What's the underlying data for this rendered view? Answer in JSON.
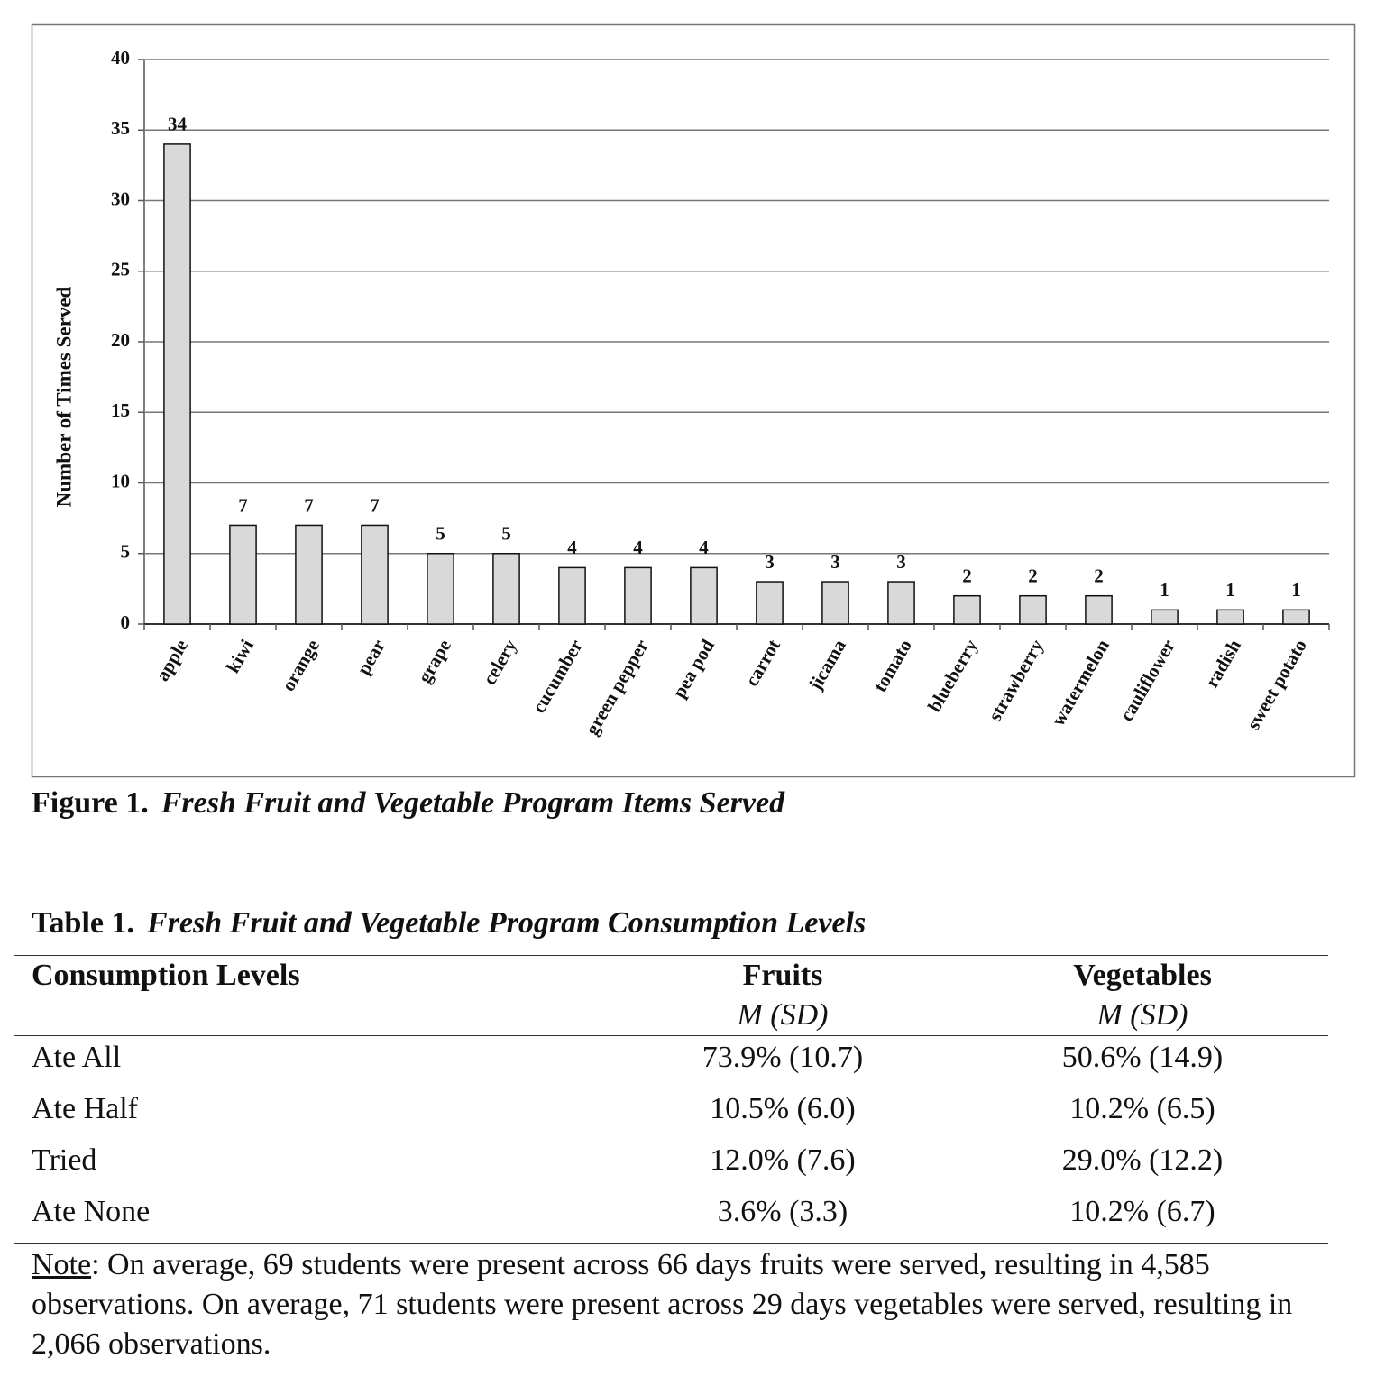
{
  "chart_data": {
    "type": "bar",
    "y_label": "Number of Times Served",
    "categories": [
      "apple",
      "kiwi",
      "orange",
      "pear",
      "grape",
      "celery",
      "cucumber",
      "green pepper",
      "pea pod",
      "carrot",
      "jicama",
      "tomato",
      "blueberry",
      "strawberry",
      "watermelon",
      "cauliflower",
      "radish",
      "sweet potato"
    ],
    "values": [
      34,
      7,
      7,
      7,
      5,
      5,
      4,
      4,
      4,
      3,
      3,
      3,
      2,
      2,
      2,
      1,
      1,
      1
    ],
    "color": "#d9d9d9",
    "ylim": [
      0,
      40
    ],
    "yticks": [
      0,
      5,
      10,
      15,
      20,
      25,
      30,
      35,
      40
    ],
    "grid": true
  },
  "figure_caption": {
    "label": "Figure 1.",
    "title": "Fresh Fruit and Vegetable Program Items Served"
  },
  "table": {
    "caption_label": "Table 1.",
    "caption_title": "Fresh Fruit and Vegetable Program Consumption Levels",
    "header": [
      "Consumption Levels",
      "Fruits",
      "Vegetables"
    ],
    "subheader": [
      "M (SD)",
      "M (SD)"
    ],
    "rows": [
      [
        "Ate All",
        "73.9% (10.7)",
        "50.6% (14.9)"
      ],
      [
        "Ate Half",
        "10.5% (6.0)",
        "10.2% (6.5)"
      ],
      [
        "Tried",
        "12.0% (7.6)",
        "29.0% (12.2)"
      ],
      [
        "Ate None",
        "3.6% (3.3)",
        "10.2% (6.7)"
      ]
    ],
    "note_label": "Note",
    "note_text": ": On average, 69 students were present across 66 days fruits were served, resulting in 4,585 observations. On average, 71 students were present across 29 days vegetables were served, resulting in 2,066 observations."
  }
}
